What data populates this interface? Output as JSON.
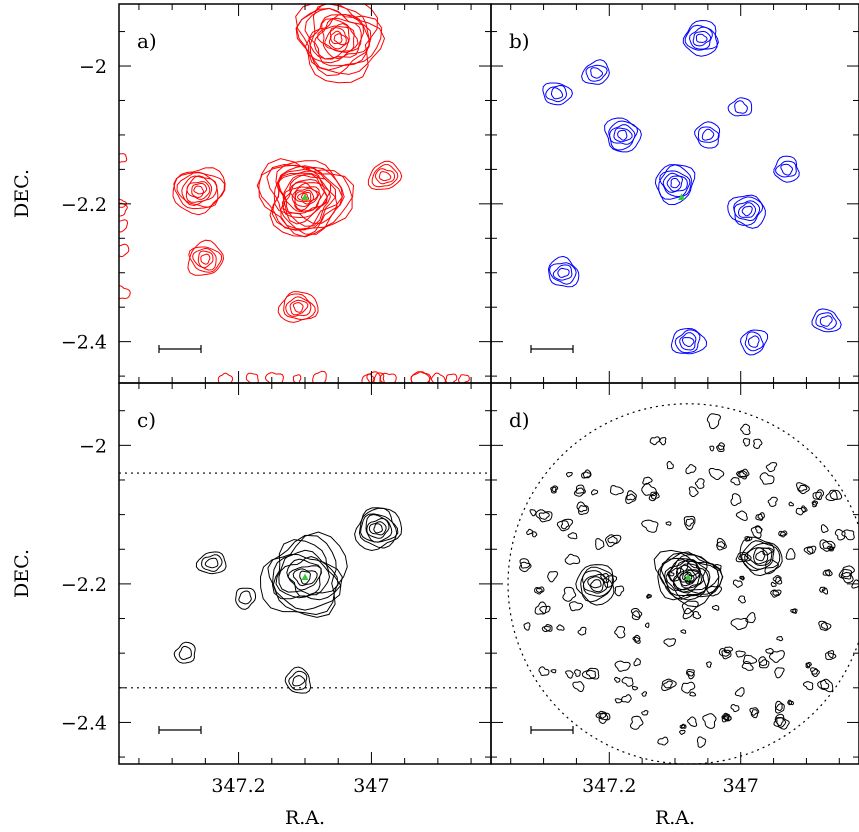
{
  "chart_data": [
    {
      "panel": "a)",
      "type": "contour",
      "color": "#ff0000",
      "xlabel": "",
      "ylabel": "DEC.",
      "ytick_labels": [
        "-2",
        "-2.2",
        "-2.4"
      ],
      "yticks": [
        -2.0,
        -2.2,
        -2.4
      ],
      "ylim": [
        -2.46,
        -1.91
      ],
      "xlim": [
        347.38,
        346.82
      ],
      "sources": [
        {
          "ra": 347.26,
          "dec": -2.18,
          "levels": 8
        },
        {
          "ra": 347.1,
          "dec": -2.19,
          "levels": 18
        },
        {
          "ra": 347.05,
          "dec": -1.96,
          "levels": 14
        },
        {
          "ra": 346.98,
          "dec": -2.16,
          "levels": 4
        },
        {
          "ra": 347.25,
          "dec": -2.28,
          "levels": 5
        },
        {
          "ra": 347.11,
          "dec": -2.35,
          "levels": 5
        }
      ],
      "marker": {
        "ra": 347.1,
        "dec": -2.19,
        "color": "#33cc33"
      },
      "scalebar": true
    },
    {
      "panel": "b)",
      "type": "contour",
      "color": "#0000ff",
      "sources": [
        {
          "ra": 347.1,
          "dec": -2.17,
          "levels": 6
        },
        {
          "ra": 347.18,
          "dec": -2.1,
          "levels": 5
        },
        {
          "ra": 347.06,
          "dec": -1.96,
          "levels": 5
        },
        {
          "ra": 346.99,
          "dec": -2.21,
          "levels": 5
        },
        {
          "ra": 347.27,
          "dec": -2.3,
          "levels": 4
        },
        {
          "ra": 347.08,
          "dec": -2.4,
          "levels": 4
        },
        {
          "ra": 347.28,
          "dec": -2.04,
          "levels": 3
        },
        {
          "ra": 347.22,
          "dec": -2.01,
          "levels": 3
        },
        {
          "ra": 347.05,
          "dec": -2.1,
          "levels": 3
        },
        {
          "ra": 347.0,
          "dec": -2.06,
          "levels": 2
        },
        {
          "ra": 346.93,
          "dec": -2.15,
          "levels": 3
        },
        {
          "ra": 346.87,
          "dec": -2.37,
          "levels": 3
        },
        {
          "ra": 346.98,
          "dec": -2.4,
          "levels": 3
        }
      ],
      "marker": {
        "ra": 347.09,
        "dec": -2.19,
        "color": "#33cc33"
      },
      "scalebar": true
    },
    {
      "panel": "c)",
      "type": "contour",
      "color": "#000000",
      "xlabel": "R.A.",
      "ylabel": "DEC.",
      "xtick_labels": [
        "347.2",
        "347"
      ],
      "xticks": [
        347.2,
        347.0
      ],
      "ytick_labels": [
        "-2",
        "-2.2",
        "-2.4"
      ],
      "yticks": [
        -2.0,
        -2.2,
        -2.4
      ],
      "ylim": [
        -2.46,
        -1.91
      ],
      "xlim": [
        347.38,
        346.82
      ],
      "dotted_lines_dec": [
        -2.04,
        -2.35
      ],
      "sources": [
        {
          "ra": 347.1,
          "dec": -2.19,
          "levels": 10
        },
        {
          "ra": 346.99,
          "dec": -2.12,
          "levels": 7
        },
        {
          "ra": 347.24,
          "dec": -2.17,
          "levels": 3
        },
        {
          "ra": 347.28,
          "dec": -2.3,
          "levels": 2
        },
        {
          "ra": 347.11,
          "dec": -2.34,
          "levels": 3
        },
        {
          "ra": 347.19,
          "dec": -2.22,
          "levels": 2
        }
      ],
      "marker": {
        "ra": 347.1,
        "dec": -2.19,
        "color": "#33cc33"
      },
      "scalebar": true
    },
    {
      "panel": "d)",
      "type": "contour",
      "color": "#000000",
      "xlabel": "R.A.",
      "xtick_labels": [
        "347.2",
        "347"
      ],
      "xticks": [
        347.2,
        347.0
      ],
      "dotted_circle": {
        "center_ra": 347.08,
        "center_dec": -2.2,
        "radius_deg": 0.26
      },
      "sources": [
        {
          "ra": 347.08,
          "dec": -2.19,
          "levels": 14
        },
        {
          "ra": 347.22,
          "dec": -2.2,
          "levels": 6
        },
        {
          "ra": 346.97,
          "dec": -2.16,
          "levels": 6
        }
      ],
      "marker": {
        "ra": 347.08,
        "dec": -2.19,
        "color": "#33cc33"
      },
      "scalebar": true
    }
  ]
}
